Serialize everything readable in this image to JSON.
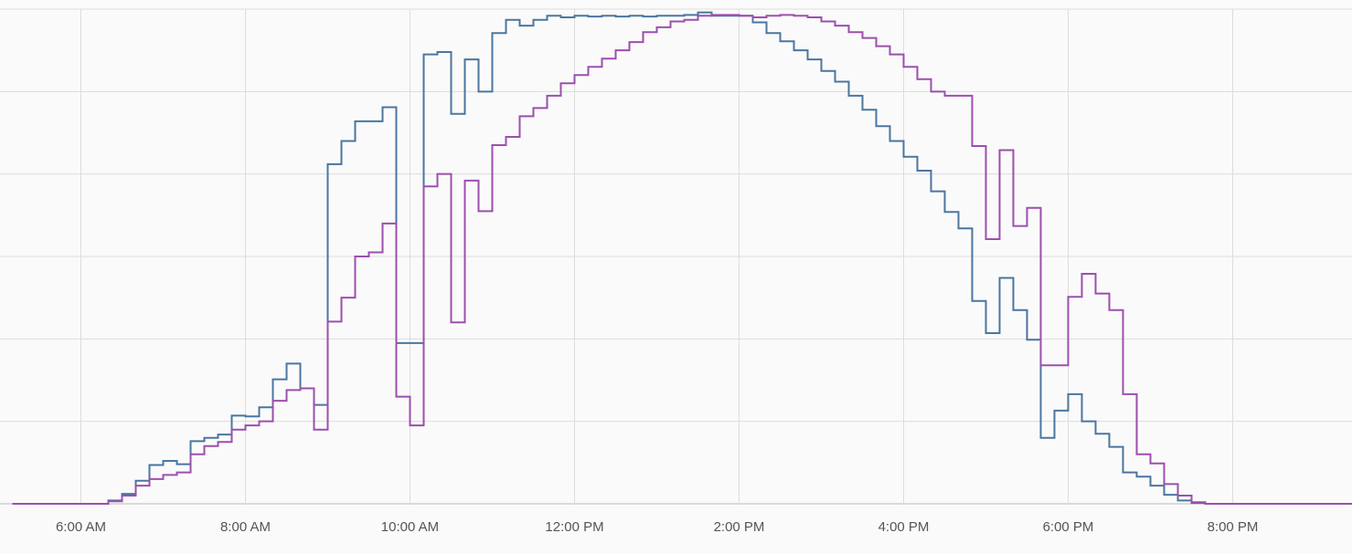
{
  "chart_data": {
    "type": "step-line",
    "x": [
      310,
      320,
      330,
      340,
      350,
      360,
      370,
      380,
      390,
      400,
      410,
      420,
      430,
      440,
      450,
      460,
      470,
      480,
      490,
      500,
      510,
      520,
      530,
      540,
      550,
      560,
      570,
      580,
      590,
      600,
      610,
      620,
      630,
      640,
      650,
      660,
      670,
      680,
      690,
      700,
      710,
      720,
      730,
      740,
      750,
      760,
      770,
      780,
      790,
      800,
      810,
      820,
      830,
      840,
      850,
      860,
      870,
      880,
      890,
      900,
      910,
      920,
      930,
      940,
      950,
      960,
      970,
      980,
      990,
      1000,
      1010,
      1020,
      1030,
      1040,
      1050,
      1060,
      1070,
      1080,
      1090,
      1100,
      1110,
      1120,
      1130,
      1140,
      1150,
      1160,
      1170,
      1180,
      1190,
      1200,
      1210,
      1220,
      1230,
      1240,
      1250,
      1260,
      1270,
      1280
    ],
    "series": [
      {
        "color": "#4a76a0",
        "values": [
          0,
          0,
          0,
          0,
          0,
          0,
          0,
          0.04,
          0.12,
          0.28,
          0.47,
          0.52,
          0.48,
          0.76,
          0.8,
          0.84,
          1.07,
          1.06,
          1.17,
          1.51,
          1.7,
          1.4,
          1.2,
          4.12,
          4.4,
          4.64,
          4.64,
          4.81,
          1.95,
          1.95,
          5.45,
          5.48,
          4.73,
          5.39,
          5.0,
          5.71,
          5.87,
          5.8,
          5.87,
          5.92,
          5.9,
          5.92,
          5.91,
          5.92,
          5.91,
          5.92,
          5.91,
          5.92,
          5.92,
          5.93,
          5.96,
          5.92,
          5.92,
          5.92,
          5.84,
          5.71,
          5.61,
          5.5,
          5.39,
          5.25,
          5.12,
          4.95,
          4.78,
          4.58,
          4.4,
          4.21,
          4.04,
          3.79,
          3.54,
          3.34,
          2.46,
          2.07,
          2.74,
          2.35,
          1.99,
          0.8,
          1.13,
          1.33,
          1.0,
          0.85,
          0.69,
          0.38,
          0.33,
          0.22,
          0.11,
          0.04,
          0.01,
          0,
          0,
          0,
          0,
          0,
          0,
          0,
          0,
          0,
          0,
          0
        ]
      },
      {
        "color": "#9c4fae",
        "values": [
          0,
          0,
          0,
          0,
          0,
          0,
          0,
          0.03,
          0.1,
          0.22,
          0.3,
          0.35,
          0.38,
          0.6,
          0.7,
          0.75,
          0.9,
          0.95,
          1.0,
          1.25,
          1.38,
          1.4,
          0.9,
          2.21,
          2.5,
          3.0,
          3.05,
          3.4,
          1.3,
          0.95,
          3.85,
          4.0,
          2.2,
          3.92,
          3.55,
          4.35,
          4.45,
          4.7,
          4.8,
          4.95,
          5.1,
          5.2,
          5.3,
          5.4,
          5.5,
          5.6,
          5.72,
          5.78,
          5.85,
          5.87,
          5.92,
          5.93,
          5.93,
          5.92,
          5.9,
          5.92,
          5.93,
          5.92,
          5.9,
          5.85,
          5.8,
          5.72,
          5.65,
          5.55,
          5.45,
          5.3,
          5.15,
          5.0,
          4.95,
          4.95,
          4.34,
          3.21,
          4.29,
          3.37,
          3.59,
          1.68,
          1.68,
          2.51,
          2.79,
          2.55,
          2.35,
          1.33,
          0.6,
          0.49,
          0.24,
          0.1,
          0.02,
          0,
          0,
          0,
          0,
          0,
          0,
          0,
          0,
          0,
          0,
          0
        ]
      }
    ],
    "xlim": [
      301,
      1287
    ],
    "xticks": [
      {
        "value": 360,
        "label": "6:00 AM"
      },
      {
        "value": 480,
        "label": "8:00 AM"
      },
      {
        "value": 600,
        "label": "10:00 AM"
      },
      {
        "value": 720,
        "label": "12:00 PM"
      },
      {
        "value": 840,
        "label": "2:00 PM"
      },
      {
        "value": 960,
        "label": "4:00 PM"
      },
      {
        "value": 1080,
        "label": "6:00 PM"
      },
      {
        "value": 1200,
        "label": "8:00 PM"
      }
    ],
    "ylim": [
      0,
      6
    ],
    "yticks": [
      0,
      1,
      2,
      3,
      4,
      5,
      6
    ],
    "grid": true
  }
}
